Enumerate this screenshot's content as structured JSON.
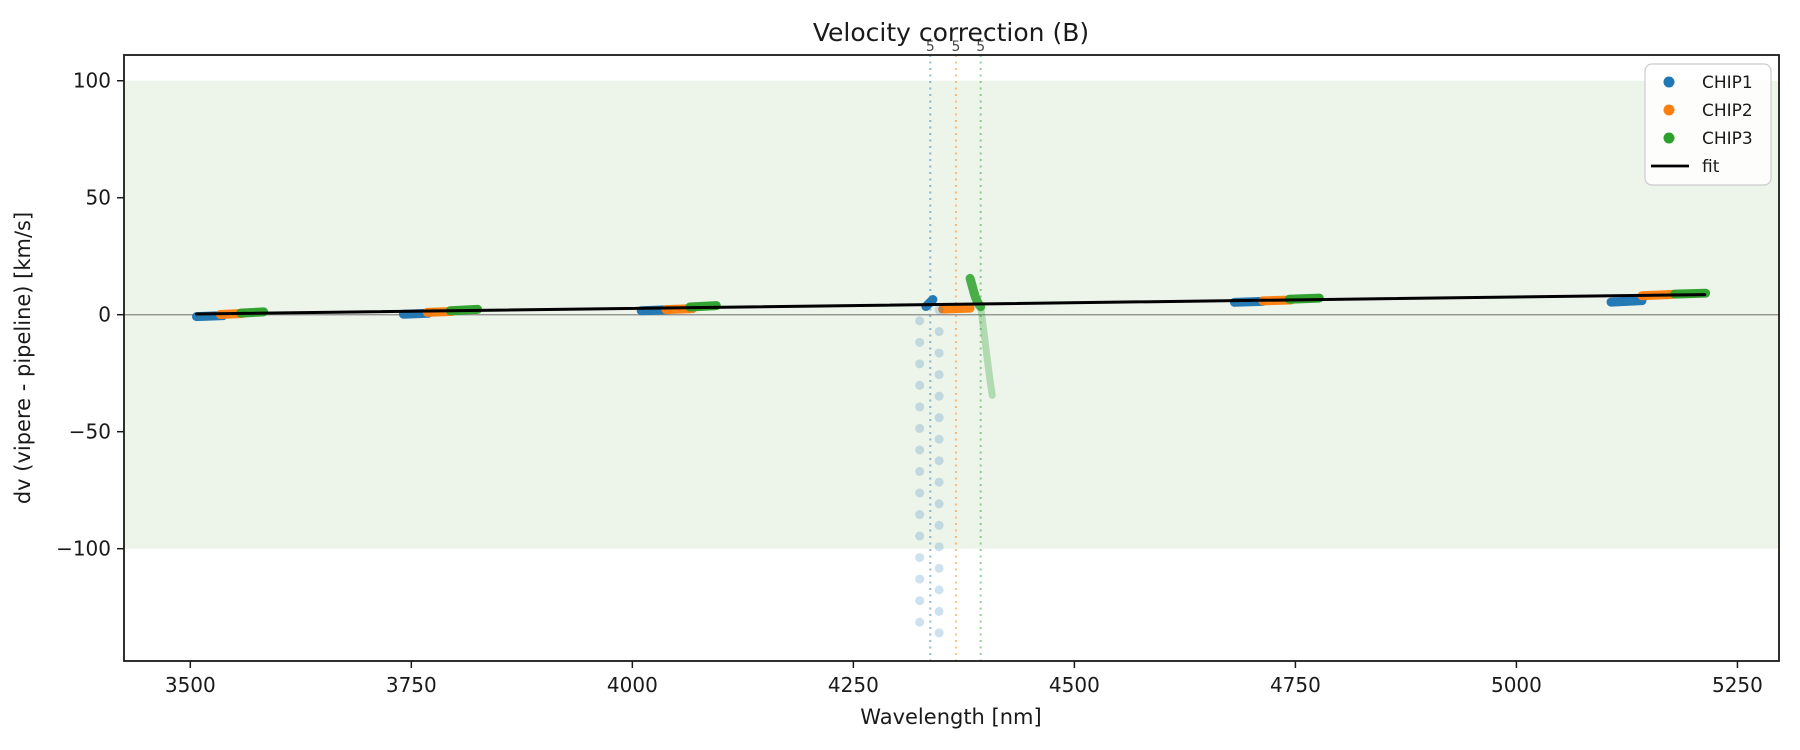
{
  "chart_data": {
    "type": "scatter",
    "title": "Velocity correction (B)",
    "xlabel": "Wavelength [nm]",
    "ylabel": "dv (vipere - pipeline) [km/s]",
    "xlim": [
      3425,
      5297
    ],
    "ylim": [
      -148,
      111
    ],
    "x_ticks": [
      3500,
      3750,
      4000,
      4250,
      4500,
      4750,
      5000,
      5250
    ],
    "y_ticks": [
      100,
      50,
      0,
      -50,
      -100
    ],
    "grid": false,
    "legend": {
      "position": "upper right",
      "entries": [
        {
          "label": "CHIP1",
          "marker": "dot",
          "color": "#1f77b4"
        },
        {
          "label": "CHIP2",
          "marker": "dot",
          "color": "#ff7f0e"
        },
        {
          "label": "CHIP3",
          "marker": "dot",
          "color": "#2ca02c"
        },
        {
          "label": "fit",
          "marker": "line",
          "color": "#000000"
        }
      ]
    },
    "colors": {
      "band": "#edf4ea",
      "zero_line": "#888888",
      "spine": "#1a1a1a",
      "fit": "#000000"
    },
    "band": {
      "ymin": -100,
      "ymax": 100
    },
    "zero_line_y": 0,
    "fit_line": {
      "label": "fit",
      "x_start": 3507,
      "dv_start": 0.3,
      "x_end": 5213,
      "dv_end": 8.6
    },
    "vlines": [
      {
        "x": 4337,
        "label": "5",
        "color": "#1f77b4"
      },
      {
        "x": 4366,
        "label": "5",
        "color": "#ff7f0e"
      },
      {
        "x": 4394,
        "label": "5",
        "color": "#2ca02c"
      }
    ],
    "series": [
      {
        "name": "CHIP1",
        "color": "#1f77b4",
        "clusters": [
          {
            "wl": [
              3507,
              3537
            ],
            "dv": [
              -0.8,
              -0.4
            ]
          },
          {
            "wl": [
              3741,
              3769
            ],
            "dv": [
              0.2,
              0.6
            ]
          },
          {
            "wl": [
              4010,
              4040
            ],
            "dv": [
              1.7,
              2.1
            ]
          },
          {
            "wl": [
              4332,
              4340
            ],
            "dv": [
              3.5,
              6.5
            ]
          },
          {
            "wl": [
              4681,
              4713
            ],
            "dv": [
              5.3,
              5.7
            ]
          },
          {
            "wl": [
              5107,
              5142
            ],
            "dv": [
              5.4,
              6.0
            ]
          }
        ]
      },
      {
        "name": "CHIP2",
        "color": "#ff7f0e",
        "clusters": [
          {
            "wl": [
              3534,
              3559
            ],
            "dv": [
              0.1,
              0.5
            ]
          },
          {
            "wl": [
              3768,
              3797
            ],
            "dv": [
              1.0,
              1.4
            ]
          },
          {
            "wl": [
              4038,
              4068
            ],
            "dv": [
              2.2,
              2.6
            ]
          },
          {
            "wl": [
              4351,
              4382
            ],
            "dv": [
              2.4,
              2.8
            ]
          },
          {
            "wl": [
              4713,
              4745
            ],
            "dv": [
              5.9,
              6.3
            ]
          },
          {
            "wl": [
              5142,
              5177
            ],
            "dv": [
              8.1,
              8.7
            ]
          }
        ]
      },
      {
        "name": "CHIP3",
        "color": "#2ca02c",
        "clusters": [
          {
            "wl": [
              3557,
              3583
            ],
            "dv": [
              0.7,
              1.2
            ]
          },
          {
            "wl": [
              3794,
              3825
            ],
            "dv": [
              1.7,
              2.3
            ]
          },
          {
            "wl": [
              4065,
              4095
            ],
            "dv": [
              3.3,
              3.9
            ]
          },
          {
            "wl": [
              4743,
              4777
            ],
            "dv": [
              6.6,
              7.1
            ]
          },
          {
            "wl": [
              5179,
              5214
            ],
            "dv": [
              8.8,
              9.2
            ]
          }
        ]
      }
    ],
    "outlier_trails": [
      {
        "series": "CHIP1",
        "color": "#1f77b4",
        "style": "faint-dots",
        "opacity": 0.22,
        "points": [
          [
            4347,
            2.0
          ],
          [
            4325,
            -2.6
          ],
          [
            4347,
            -7.2
          ],
          [
            4325,
            -11.8
          ],
          [
            4347,
            -16.4
          ],
          [
            4325,
            -21.0
          ],
          [
            4347,
            -25.6
          ],
          [
            4325,
            -30.2
          ],
          [
            4347,
            -34.8
          ],
          [
            4325,
            -39.4
          ],
          [
            4347,
            -44.0
          ],
          [
            4325,
            -48.6
          ],
          [
            4347,
            -53.2
          ],
          [
            4325,
            -57.8
          ],
          [
            4347,
            -62.4
          ],
          [
            4325,
            -67.0
          ],
          [
            4347,
            -71.6
          ],
          [
            4325,
            -76.2
          ],
          [
            4347,
            -80.8
          ],
          [
            4325,
            -85.4
          ],
          [
            4347,
            -90.0
          ],
          [
            4325,
            -94.6
          ],
          [
            4347,
            -99.2
          ],
          [
            4325,
            -103.8
          ],
          [
            4347,
            -108.4
          ],
          [
            4325,
            -113.0
          ],
          [
            4347,
            -117.6
          ],
          [
            4325,
            -122.2
          ],
          [
            4347,
            -126.8
          ],
          [
            4325,
            -131.4
          ],
          [
            4347,
            -136.0
          ]
        ]
      },
      {
        "series": "CHIP3",
        "color": "#2ca02c",
        "style": "dense-arc",
        "opacity": 0.85,
        "points": [
          [
            4382,
            15.5
          ],
          [
            4383.5,
            13.5
          ],
          [
            4385,
            11.5
          ],
          [
            4386.5,
            9.5
          ],
          [
            4388,
            7.5
          ],
          [
            4390,
            5.8
          ],
          [
            4392,
            4.4
          ],
          [
            4394,
            3.4
          ]
        ]
      },
      {
        "series": "CHIP3",
        "color": "#2ca02c",
        "style": "faint-arc",
        "opacity": 0.3,
        "points": [
          [
            4394.5,
            2
          ],
          [
            4395.5,
            -1
          ],
          [
            4396.5,
            -4
          ],
          [
            4397.5,
            -7
          ],
          [
            4398.5,
            -10
          ],
          [
            4399.5,
            -13
          ],
          [
            4400.5,
            -16
          ],
          [
            4401.5,
            -19
          ],
          [
            4402.5,
            -22
          ],
          [
            4403.5,
            -25
          ],
          [
            4404.5,
            -28
          ],
          [
            4405.8,
            -31
          ],
          [
            4407,
            -34.5
          ]
        ]
      }
    ]
  }
}
